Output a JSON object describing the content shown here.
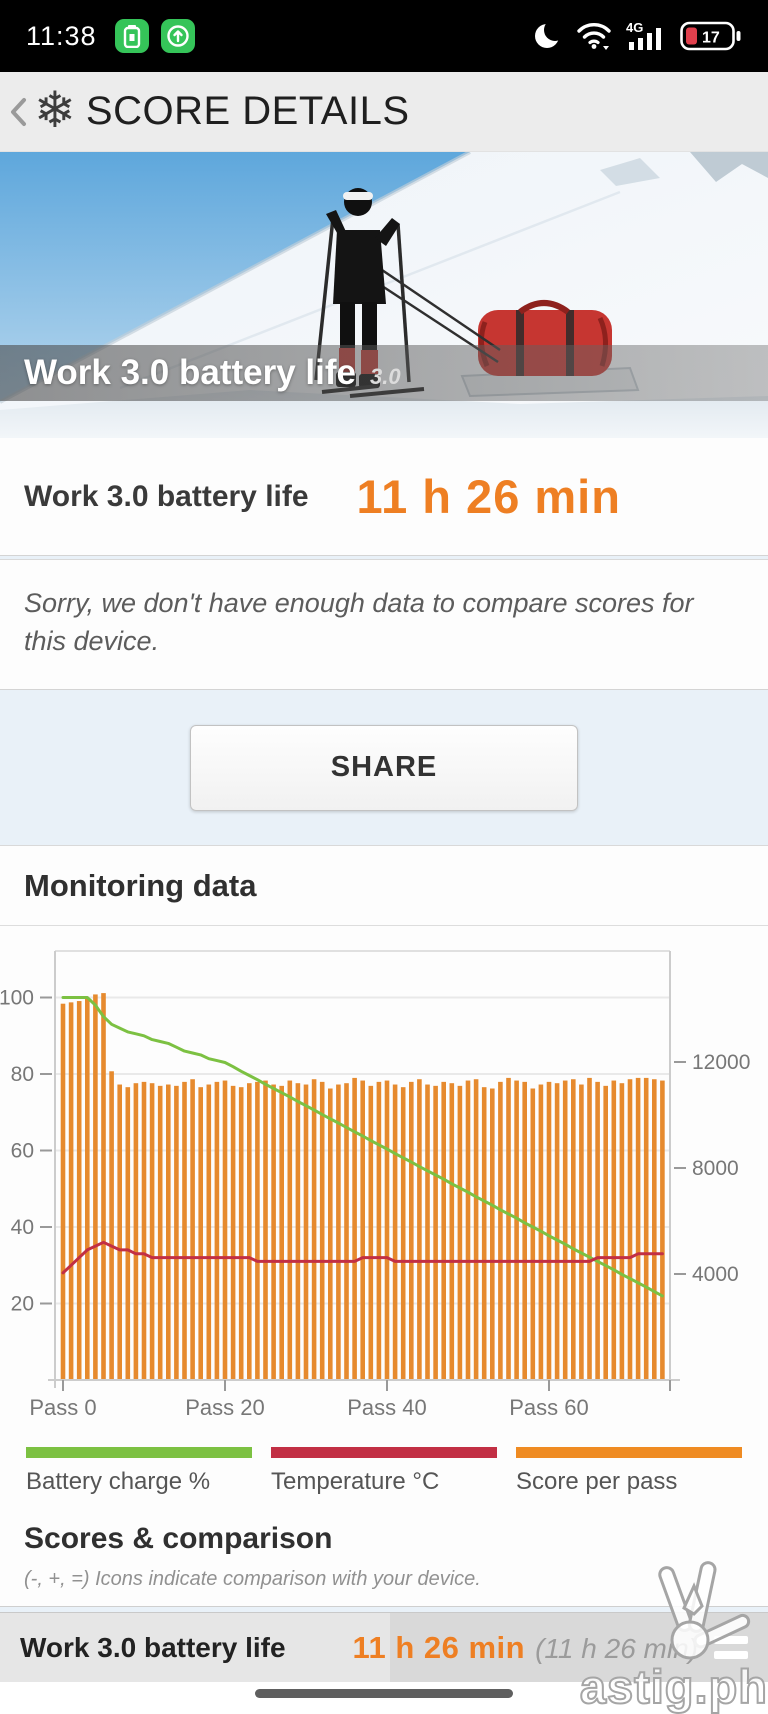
{
  "status_bar": {
    "time": "11:38",
    "network_label": "4G",
    "battery_percent": "17"
  },
  "header": {
    "title": "SCORE DETAILS"
  },
  "hero": {
    "title": "Work 3.0 battery life",
    "version": "3.0"
  },
  "result": {
    "label": "Work 3.0 battery life",
    "score": "11 h 26 min"
  },
  "notice": {
    "text": "Sorry, we don't have enough data to compare scores for this device."
  },
  "share": {
    "label": "SHARE"
  },
  "monitoring": {
    "title": "Monitoring data"
  },
  "scores_comparison": {
    "title": "Scores & comparison",
    "subtitle": "(-, +, =) Icons indicate comparison with your device."
  },
  "bottom_bar": {
    "label": "Work 3.0 battery life",
    "score": "11 h 26 min",
    "score_secondary": "(11 h 26 min)"
  },
  "watermark": {
    "text": "astig.ph"
  },
  "colors": {
    "accent_orange": "#ee7f23",
    "page_background": "#e9f1f8",
    "status_green": "#35c459"
  },
  "chart_data": {
    "type": "bar",
    "title": "Monitoring data",
    "x_unit": "pass",
    "x_tick_labels": [
      "Pass 0",
      "Pass 20",
      "Pass 40",
      "Pass 60"
    ],
    "x_tick_passes": [
      0,
      20,
      40,
      60
    ],
    "left_axis": {
      "ticks": [
        20,
        40,
        60,
        80,
        100
      ],
      "range": [
        0,
        112
      ]
    },
    "right_axis": {
      "ticks": [
        4000,
        8000,
        12000
      ],
      "range": [
        0,
        17000
      ]
    },
    "grid": true,
    "legend_position": "bottom",
    "series": [
      {
        "name": "Battery charge %",
        "type": "line",
        "axis": "left",
        "color": "#7cc142",
        "values": [
          100,
          100,
          100,
          100,
          98,
          95,
          93,
          92,
          91,
          90.5,
          90,
          89,
          88.5,
          88,
          87,
          86,
          85.5,
          85,
          84,
          83.5,
          83,
          81.9,
          80.7,
          79.6,
          78.5,
          77.3,
          76.2,
          75.1,
          74,
          72.8,
          71.7,
          70.6,
          69.4,
          68.3,
          67.2,
          66,
          64.9,
          63.8,
          62.6,
          61.5,
          60.4,
          59.2,
          58.1,
          57,
          55.8,
          54.7,
          53.6,
          52.5,
          51.3,
          50.2,
          49.1,
          47.9,
          46.8,
          45.7,
          44.5,
          43.4,
          42.3,
          41.1,
          40,
          38.9,
          37.7,
          36.6,
          35.5,
          34.3,
          33.2,
          32.1,
          31,
          29.9,
          28.8,
          27.6,
          26.5,
          25.4,
          24.3,
          23.1,
          22
        ]
      },
      {
        "name": "Temperature °C",
        "type": "line",
        "axis": "left",
        "color": "#c22f44",
        "values": [
          28,
          30,
          32,
          34,
          35,
          36,
          35,
          34,
          34,
          33,
          33,
          32,
          32,
          32,
          32,
          32,
          32,
          32,
          32,
          32,
          32,
          32,
          32,
          32,
          31,
          31,
          31,
          31,
          31,
          31,
          31,
          31,
          31,
          31,
          31,
          31,
          31,
          32,
          32,
          32,
          32,
          31,
          31,
          31,
          31,
          31,
          31,
          31,
          31,
          31,
          31,
          31,
          31,
          31,
          31,
          31,
          31,
          31,
          31,
          31,
          31,
          31,
          31,
          31,
          31,
          31,
          32,
          32,
          32,
          32,
          32,
          33,
          33,
          33,
          33
        ]
      },
      {
        "name": "Score per pass",
        "type": "bar",
        "axis": "right",
        "color": "#e68a2e",
        "values": [
          14200,
          14250,
          14300,
          14400,
          14550,
          14600,
          11650,
          11150,
          11050,
          11200,
          11250,
          11200,
          11100,
          11150,
          11100,
          11250,
          11350,
          11050,
          11150,
          11250,
          11300,
          11100,
          11050,
          11200,
          11250,
          11300,
          11150,
          11100,
          11300,
          11200,
          11150,
          11350,
          11250,
          11000,
          11150,
          11200,
          11400,
          11300,
          11100,
          11250,
          11300,
          11150,
          11050,
          11250,
          11350,
          11150,
          11100,
          11250,
          11200,
          11100,
          11300,
          11350,
          11050,
          11000,
          11250,
          11400,
          11300,
          11250,
          11000,
          11150,
          11250,
          11200,
          11300,
          11350,
          11150,
          11400,
          11250,
          11100,
          11300,
          11200,
          11350,
          11400,
          11400,
          11350,
          11300
        ]
      }
    ]
  }
}
